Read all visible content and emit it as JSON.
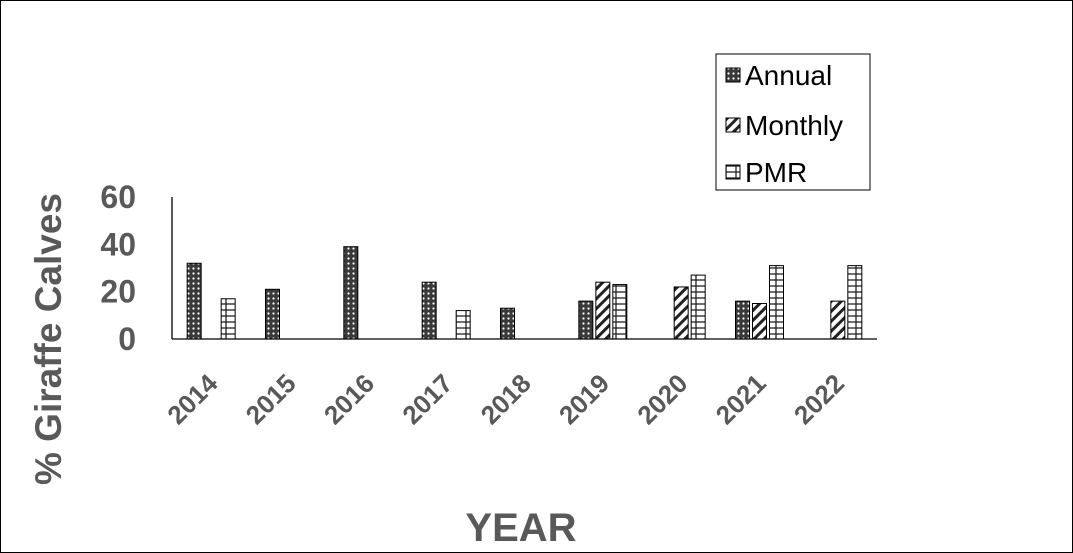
{
  "chart_data": {
    "type": "bar",
    "ylabel": "% Giraffe Calves",
    "xlabel": "YEAR",
    "ylim": [
      0,
      60
    ],
    "yticks": [
      "0",
      "20",
      "40",
      "60"
    ],
    "categories": [
      "2014",
      "2015",
      "2016",
      "2017",
      "2018",
      "2019",
      "2020",
      "2021",
      "2022"
    ],
    "series": [
      {
        "name": "Annual",
        "pattern": "dots",
        "values": [
          32,
          21,
          39,
          24,
          13,
          16,
          null,
          16,
          null
        ]
      },
      {
        "name": "Monthly",
        "pattern": "diagonal",
        "values": [
          null,
          null,
          null,
          null,
          null,
          24,
          22,
          15,
          16
        ]
      },
      {
        "name": "PMR",
        "pattern": "grid",
        "values": [
          17,
          null,
          null,
          12,
          null,
          23,
          27,
          31,
          31
        ]
      }
    ],
    "legend_position": "top-right",
    "grid": false
  }
}
